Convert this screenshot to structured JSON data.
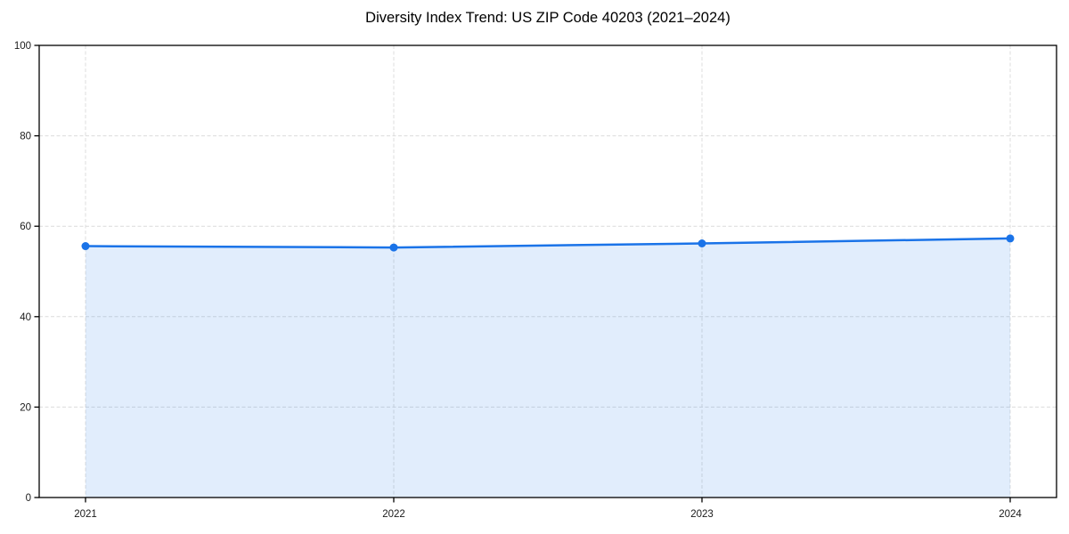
{
  "figure": {
    "background": "#ffffff"
  },
  "chart_data": {
    "type": "area",
    "title": "Diversity Index Trend: US ZIP Code 40203 (2021–2024)",
    "categories": [
      "2021",
      "2022",
      "2023",
      "2024"
    ],
    "x": [
      2021,
      2022,
      2023,
      2024
    ],
    "series": [
      {
        "name": "Diversity Index",
        "values": [
          55.6,
          55.3,
          56.2,
          57.3
        ]
      }
    ],
    "xlabel": "",
    "ylabel": "",
    "ylim": [
      0,
      100
    ],
    "yticks": [
      0,
      20,
      40,
      60,
      80,
      100
    ],
    "grid": true,
    "grid_style": "dashed",
    "legend": "none",
    "marker": "circle",
    "colors": {
      "line": "#1a73e8",
      "marker": "#1a73e8",
      "fill": "#1a73e8",
      "fill_opacity": 0.13,
      "grid": "#dcdcdc",
      "axis": "#000000",
      "tick_text": "#1a1a1a",
      "title_text": "#000000",
      "background": "#ffffff"
    }
  }
}
